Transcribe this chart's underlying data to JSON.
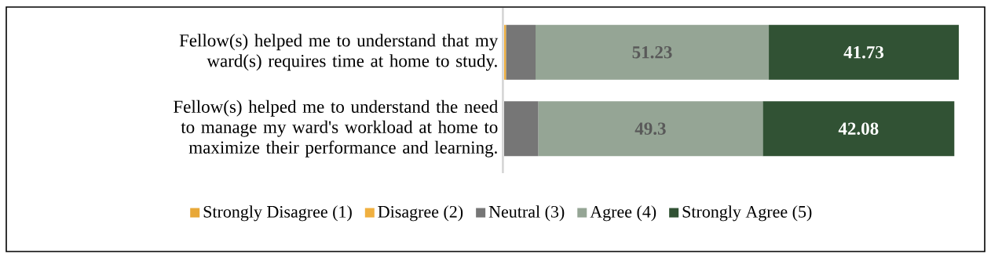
{
  "chart_data": {
    "type": "bar",
    "orientation": "horizontal",
    "stacked": true,
    "legend": "bottom",
    "categories": [
      "Fellow(s) helped me to understand that my ward(s) requires time at home to study.",
      "Fellow(s) helped me to understand the need to manage my ward's workload at home to maximize their performance and learning."
    ],
    "series": [
      {
        "name": "Strongly Disagree (1)",
        "color": "#e8a838",
        "values": [
          0,
          0
        ]
      },
      {
        "name": "Disagree (2)",
        "color": "#f0b040",
        "values": [
          0.4,
          0
        ]
      },
      {
        "name": "Neutral (3)",
        "color": "#767676",
        "values": [
          6.5,
          7.5
        ]
      },
      {
        "name": "Agree (4)",
        "color": "#95a595",
        "values": [
          51.23,
          49.3
        ],
        "value_labels": [
          "51.23",
          "49.3"
        ]
      },
      {
        "name": "Strongly Agree (5)",
        "color": "#315234",
        "values": [
          41.73,
          42.08
        ],
        "value_labels": [
          "41.73",
          "42.08"
        ]
      }
    ]
  }
}
